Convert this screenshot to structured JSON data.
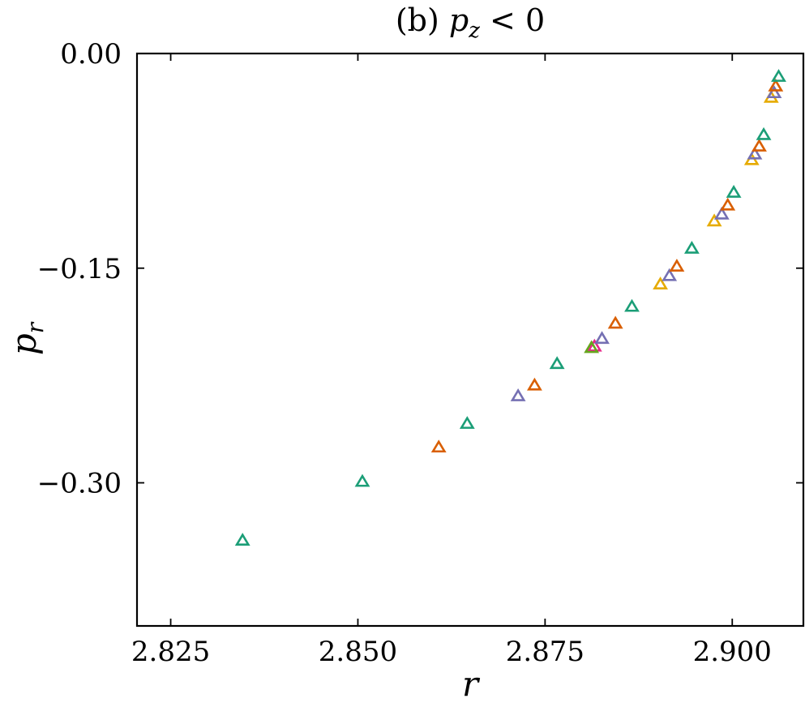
{
  "chart_data": {
    "type": "scatter",
    "title": "(b) p_z < 0",
    "title_parts": {
      "prefix": "(b) ",
      "var": "p",
      "sub": "z",
      "suffix": " < 0"
    },
    "xlabel": "r",
    "ylabel": {
      "var": "p",
      "sub": "r"
    },
    "xlim": [
      2.8205,
      2.9095
    ],
    "ylim": [
      -0.4,
      0.0
    ],
    "xticks": [
      2.825,
      2.85,
      2.875,
      2.9
    ],
    "xtick_labels": [
      "2.825",
      "2.850",
      "2.875",
      "2.900"
    ],
    "yticks": [
      0.0,
      -0.15,
      -0.3
    ],
    "ytick_labels": [
      "0.00",
      "−0.15",
      "−0.30"
    ],
    "grid": false,
    "marker": "triangle-open",
    "colors": {
      "teal": "#1b9e77",
      "orange": "#d95f02",
      "purple": "#7570b3",
      "pink": "#e7298a",
      "green": "#66a61e",
      "gold": "#e6ab02"
    },
    "points": [
      {
        "x": 2.8346,
        "y": -0.3406,
        "c": "teal"
      },
      {
        "x": 2.8506,
        "y": -0.2995,
        "c": "teal"
      },
      {
        "x": 2.8608,
        "y": -0.2755,
        "c": "orange"
      },
      {
        "x": 2.8646,
        "y": -0.259,
        "c": "teal"
      },
      {
        "x": 2.8714,
        "y": -0.2397,
        "c": "purple"
      },
      {
        "x": 2.8736,
        "y": -0.2322,
        "c": "orange"
      },
      {
        "x": 2.8766,
        "y": -0.2172,
        "c": "teal"
      },
      {
        "x": 2.8816,
        "y": -0.205,
        "c": "pink"
      },
      {
        "x": 2.8812,
        "y": -0.206,
        "c": "green"
      },
      {
        "x": 2.8826,
        "y": -0.1996,
        "c": "purple"
      },
      {
        "x": 2.8844,
        "y": -0.189,
        "c": "orange"
      },
      {
        "x": 2.8866,
        "y": -0.1772,
        "c": "teal"
      },
      {
        "x": 2.8904,
        "y": -0.1616,
        "c": "gold"
      },
      {
        "x": 2.8916,
        "y": -0.1557,
        "c": "purple"
      },
      {
        "x": 2.8926,
        "y": -0.1491,
        "c": "orange"
      },
      {
        "x": 2.8946,
        "y": -0.1366,
        "c": "teal"
      },
      {
        "x": 2.8976,
        "y": -0.1175,
        "c": "gold"
      },
      {
        "x": 2.8986,
        "y": -0.1127,
        "c": "purple"
      },
      {
        "x": 2.8994,
        "y": -0.1064,
        "c": "orange"
      },
      {
        "x": 2.9002,
        "y": -0.0975,
        "c": "teal"
      },
      {
        "x": 2.9026,
        "y": -0.0747,
        "c": "gold"
      },
      {
        "x": 2.903,
        "y": -0.0707,
        "c": "purple"
      },
      {
        "x": 2.9036,
        "y": -0.0652,
        "c": "orange"
      },
      {
        "x": 2.9042,
        "y": -0.0572,
        "c": "teal"
      },
      {
        "x": 2.9052,
        "y": -0.0311,
        "c": "gold"
      },
      {
        "x": 2.9056,
        "y": -0.0279,
        "c": "purple"
      },
      {
        "x": 2.9058,
        "y": -0.0232,
        "c": "orange"
      },
      {
        "x": 2.9062,
        "y": -0.0165,
        "c": "teal"
      }
    ]
  }
}
